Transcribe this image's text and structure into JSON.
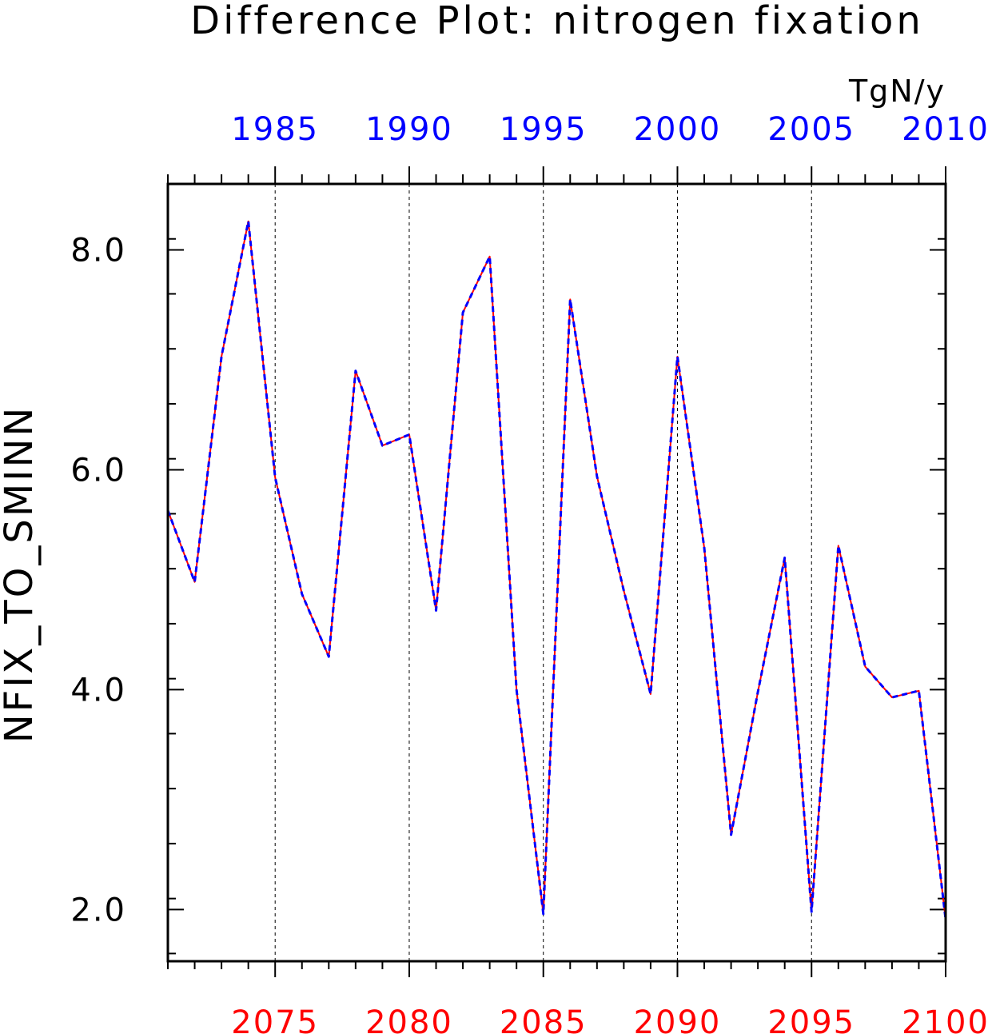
{
  "chart_data": {
    "type": "line",
    "title": "Difference Plot: nitrogen fixation",
    "units": "TgN/y",
    "ylabel": "NFIX_TO_SMINN",
    "xlabel": "",
    "ylim": [
      1.53,
      8.6
    ],
    "y_ticks": [
      "2.0",
      "4.0",
      "6.0",
      "8.0"
    ],
    "xlim": [
      2071,
      2100
    ],
    "bottom_axis": {
      "color": "#ff0000",
      "ticks": [
        "2075",
        "2080",
        "2085",
        "2090",
        "2095",
        "2100"
      ]
    },
    "top_axis": {
      "color": "#0000ff",
      "ticks": [
        "1985",
        "1990",
        "1995",
        "2000",
        "2005",
        "2010"
      ]
    },
    "grid": "dashed vertical",
    "x": [
      2071,
      2072,
      2073,
      2074,
      2075,
      2076,
      2077,
      2078,
      2079,
      2080,
      2081,
      2082,
      2083,
      2084,
      2085,
      2086,
      2087,
      2088,
      2089,
      2090,
      2091,
      2092,
      2093,
      2094,
      2095,
      2096,
      2097,
      2098,
      2099,
      2100
    ],
    "series": [
      {
        "color": "#ff0000",
        "style": "solid",
        "values": [
          5.63,
          4.98,
          7.03,
          8.26,
          5.93,
          4.87,
          4.3,
          6.9,
          6.22,
          6.32,
          4.72,
          7.43,
          7.94,
          4.0,
          1.96,
          7.55,
          5.94,
          4.9,
          3.96,
          7.03,
          5.29,
          2.68,
          3.98,
          5.2,
          1.98,
          5.31,
          4.21,
          3.93,
          3.99,
          1.91
        ]
      },
      {
        "color": "#0000ff",
        "style": "dashed",
        "values": [
          5.63,
          4.98,
          7.03,
          8.26,
          5.93,
          4.87,
          4.3,
          6.9,
          6.22,
          6.32,
          4.72,
          7.43,
          7.94,
          4.0,
          1.96,
          7.55,
          5.94,
          4.9,
          3.96,
          7.03,
          5.29,
          2.68,
          3.98,
          5.2,
          1.98,
          5.31,
          4.21,
          3.93,
          3.99,
          1.91
        ]
      }
    ]
  }
}
